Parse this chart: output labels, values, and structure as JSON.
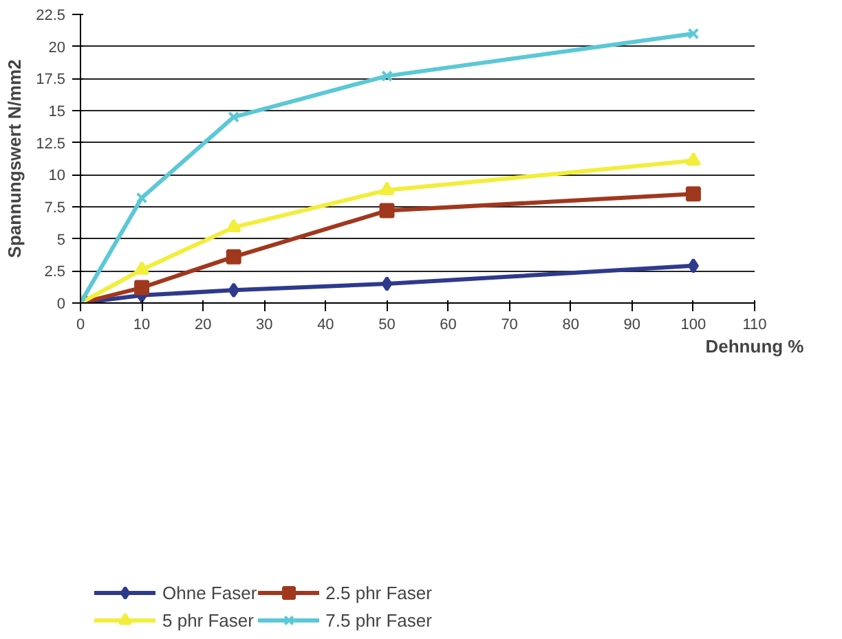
{
  "chart_data": {
    "type": "line",
    "xlabel": "Dehnung %",
    "ylabel": "Spannungswert N/mm2",
    "x": [
      0,
      10,
      25,
      50,
      100
    ],
    "xlim": [
      0,
      110
    ],
    "xticks": [
      0,
      10,
      20,
      30,
      40,
      50,
      60,
      70,
      80,
      90,
      100,
      110
    ],
    "ylim": [
      0,
      22.5
    ],
    "yticks": [
      0,
      2.5,
      5,
      7.5,
      10,
      12.5,
      15,
      17.5,
      20,
      22.5
    ],
    "grid": "y",
    "legend": "bottom",
    "series": [
      {
        "name": "Ohne Faser",
        "color": "#2e3a8c",
        "marker": "diamond",
        "values": [
          0,
          0.6,
          1.0,
          1.5,
          2.9
        ]
      },
      {
        "name": "2.5 phr Faser",
        "color": "#a0381e",
        "marker": "square",
        "values": [
          0,
          1.2,
          3.6,
          7.2,
          8.5
        ]
      },
      {
        "name": "5 phr Faser",
        "color": "#f2ee3a",
        "marker": "triangle",
        "values": [
          0,
          2.6,
          5.9,
          8.8,
          11.1
        ]
      },
      {
        "name": "7.5 phr Faser",
        "color": "#5bc8d6",
        "marker": "cross",
        "values": [
          0,
          8.2,
          14.5,
          17.7,
          21.0
        ]
      }
    ]
  }
}
